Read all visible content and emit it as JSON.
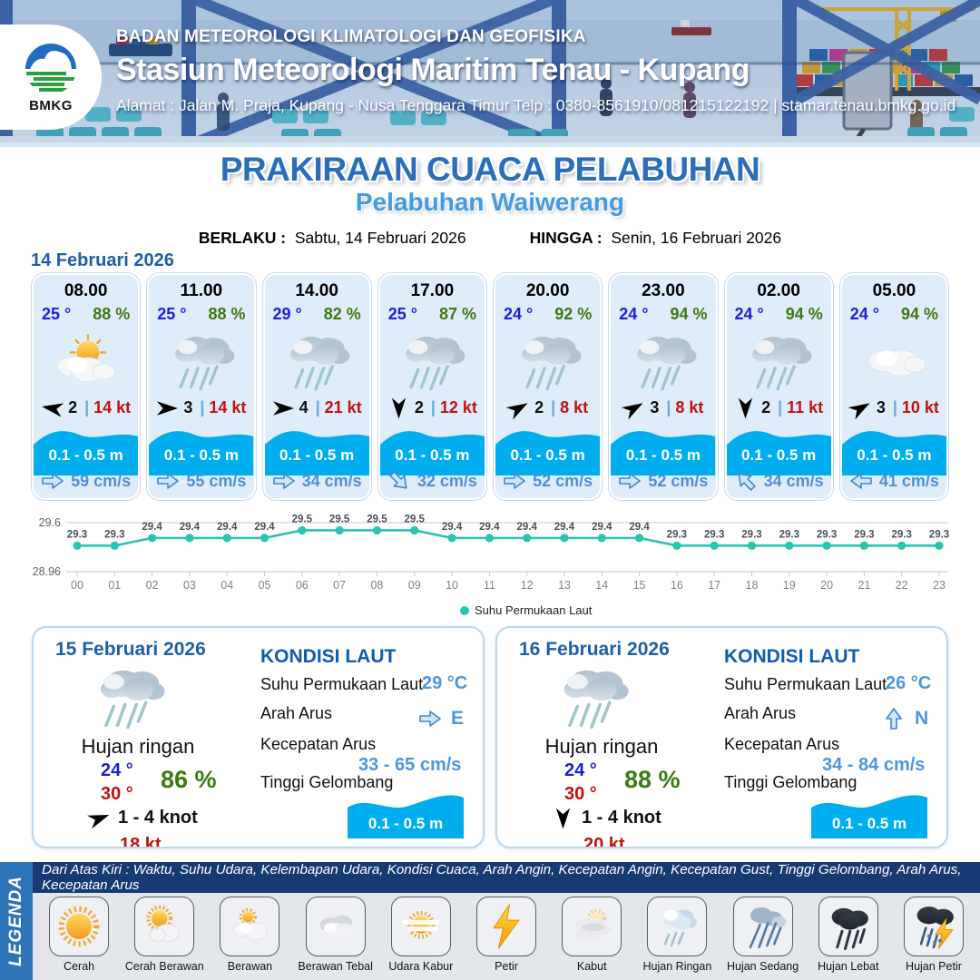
{
  "header": {
    "logo": "BMKG",
    "agency": "BADAN METEOROLOGI KLIMATOLOGI DAN GEOFISIKA",
    "station": "Stasiun Meteorologi Maritim Tenau - Kupang",
    "address": "Alamat : Jalan M. Praja, Kupang - Nusa Tenggara Timur Telp : 0380-8561910/081215122192  | stamar.tenau.bmkg.go.id"
  },
  "title": {
    "main": "PRAKIRAAN CUACA PELABUHAN",
    "subtitle": "Pelabuhan Waiwerang",
    "berlaku_label": "BERLAKU :",
    "berlaku_value": "Sabtu, 14 Februari 2026",
    "hingga_label": "HINGGA :",
    "hingga_value": "Senin, 16 Februari 2026"
  },
  "ui": {
    "pipe": "|"
  },
  "forecast": {
    "date": "14 Februari 2026",
    "cards": [
      {
        "time": "08.00",
        "temp": "25 °",
        "humidity": "88 %",
        "weather": "Cerah Berawan",
        "wind_speed": "2",
        "gust": "14 kt",
        "wind_deg": 190,
        "wave": "0.1 - 0.5 m",
        "current": "59 cm/s",
        "current_deg": 0
      },
      {
        "time": "11.00",
        "temp": "25 °",
        "humidity": "88 %",
        "weather": "Hujan",
        "wind_speed": "3",
        "gust": "14 kt",
        "wind_deg": 0,
        "wave": "0.1 - 0.5 m",
        "current": "55 cm/s",
        "current_deg": 0
      },
      {
        "time": "14.00",
        "temp": "29 °",
        "humidity": "82 %",
        "weather": "Hujan",
        "wind_speed": "4",
        "gust": "21 kt",
        "wind_deg": 0,
        "wave": "0.1 - 0.5 m",
        "current": "34 cm/s",
        "current_deg": 0
      },
      {
        "time": "17.00",
        "temp": "25 °",
        "humidity": "87 %",
        "weather": "Hujan",
        "wind_speed": "2",
        "gust": "12 kt",
        "wind_deg": 90,
        "wave": "0.1 - 0.5 m",
        "current": "32 cm/s",
        "current_deg": 45
      },
      {
        "time": "20.00",
        "temp": "24 °",
        "humidity": "92 %",
        "weather": "Hujan",
        "wind_speed": "2",
        "gust": "8 kt",
        "wind_deg": -30,
        "wave": "0.1 - 0.5 m",
        "current": "52 cm/s",
        "current_deg": 0
      },
      {
        "time": "23.00",
        "temp": "24 °",
        "humidity": "94 %",
        "weather": "Hujan",
        "wind_speed": "3",
        "gust": "8 kt",
        "wind_deg": -30,
        "wave": "0.1 - 0.5 m",
        "current": "52 cm/s",
        "current_deg": 0
      },
      {
        "time": "02.00",
        "temp": "24 °",
        "humidity": "94 %",
        "weather": "Hujan",
        "wind_speed": "2",
        "gust": "11 kt",
        "wind_deg": 90,
        "wave": "0.1 - 0.5 m",
        "current": "34 cm/s",
        "current_deg": -135
      },
      {
        "time": "05.00",
        "temp": "24 °",
        "humidity": "94 %",
        "weather": "Berawan",
        "wind_speed": "3",
        "gust": "10 kt",
        "wind_deg": -30,
        "wave": "0.1 - 0.5 m",
        "current": "41 cm/s",
        "current_deg": 180
      }
    ]
  },
  "chart_data": {
    "type": "line",
    "title": "",
    "xlabel": "",
    "ylabel": "",
    "x": [
      "00",
      "01",
      "02",
      "03",
      "04",
      "05",
      "06",
      "07",
      "08",
      "09",
      "10",
      "11",
      "12",
      "13",
      "14",
      "15",
      "16",
      "17",
      "18",
      "19",
      "20",
      "21",
      "22",
      "23"
    ],
    "series": [
      {
        "name": "Suhu Permukaan Laut",
        "values": [
          29.3,
          29.3,
          29.4,
          29.4,
          29.4,
          29.4,
          29.5,
          29.5,
          29.5,
          29.5,
          29.4,
          29.4,
          29.4,
          29.4,
          29.4,
          29.4,
          29.3,
          29.3,
          29.3,
          29.3,
          29.3,
          29.3,
          29.3,
          29.3
        ]
      }
    ],
    "ylim": [
      28.96,
      29.6
    ],
    "y_tick_labels": [
      "28.96",
      "29.6"
    ],
    "legend_position": "bottom",
    "grid": "horizontal",
    "line_color": "#2cc3b0"
  },
  "days": [
    {
      "date": "15 Februari 2026",
      "condition": "Hujan ringan",
      "temp_min": "24 °",
      "temp_max": "30 °",
      "humidity": "86 %",
      "wind_range": "1  - 4 knot",
      "gust": "18 kt",
      "wind_deg": -20,
      "sea": {
        "title": "KONDISI LAUT",
        "sst_label": "Suhu Permukaan Laut",
        "sst_value": "29 °C",
        "dir_label": "Arah Arus",
        "dir_value": "E",
        "dir_deg": 0,
        "speed_label": "Kecepatan Arus",
        "speed_value": "33 - 65 cm/s",
        "wave_label": "Tinggi Gelombang",
        "wave_value": "0.1 - 0.5 m"
      }
    },
    {
      "date": "16 Februari 2026",
      "condition": "Hujan ringan",
      "temp_min": "24 °",
      "temp_max": "30 °",
      "humidity": "88 %",
      "wind_range": "1  - 4 knot",
      "gust": "20 kt",
      "wind_deg": 90,
      "sea": {
        "title": "KONDISI LAUT",
        "sst_label": "Suhu Permukaan Laut",
        "sst_value": "26 °C",
        "dir_label": "Arah Arus",
        "dir_value": "N",
        "dir_deg": -90,
        "speed_label": "Kecepatan Arus",
        "speed_value": "34 - 84 cm/s",
        "wave_label": "Tinggi Gelombang",
        "wave_value": "0.1 - 0.5 m"
      }
    }
  ],
  "legend": {
    "side_label": "LEGENDA",
    "note": "Dari Atas Kiri : Waktu, Suhu Udara, Kelembapan Udara, Kondisi Cuaca, Arah Angin, Kecepatan Angin, Kecepatan Gust, Tinggi Gelombang, Arah Arus, Kecepatan Arus",
    "items": [
      {
        "label": "Cerah",
        "icon": "cerah-icon"
      },
      {
        "label": "Cerah Berawan",
        "icon": "cerah-berawan-icon"
      },
      {
        "label": "Berawan",
        "icon": "berawan-icon"
      },
      {
        "label": "Berawan Tebal",
        "icon": "berawan-tebal-icon"
      },
      {
        "label": "Udara Kabur",
        "icon": "udara-kabur-icon"
      },
      {
        "label": "Petir",
        "icon": "petir-icon"
      },
      {
        "label": "Kabut",
        "icon": "kabut-icon"
      },
      {
        "label": "Hujan Ringan",
        "icon": "hujan-ringan-icon"
      },
      {
        "label": "Hujan Sedang",
        "icon": "hujan-sedang-icon"
      },
      {
        "label": "Hujan Lebat",
        "icon": "hujan-lebat-icon"
      },
      {
        "label": "Hujan Petir",
        "icon": "hujan-petir-icon"
      }
    ]
  },
  "colors": {
    "wave_cyan": "#00AEEF",
    "chart_teal": "#2cc3b0",
    "temp_blue": "#1d1de0",
    "humidity_green": "#3d7a10",
    "gust_red": "#c11212",
    "current_blue": "#4d90d5",
    "title_blue": "#2a6db8",
    "subtitle_blue": "#449bdd"
  }
}
